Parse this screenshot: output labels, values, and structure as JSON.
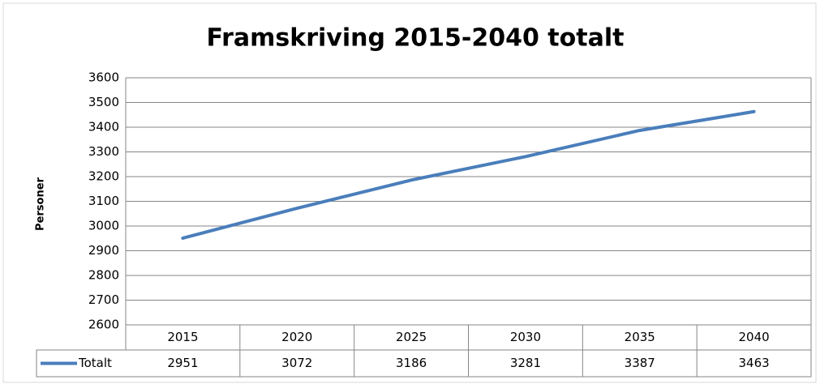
{
  "chart_data": {
    "type": "line",
    "title": "Framskriving 2015-2040 totalt",
    "y_label": "Personer",
    "categories": [
      "2015",
      "2020",
      "2025",
      "2030",
      "2035",
      "2040"
    ],
    "series": [
      {
        "name": "Totalt",
        "color": "#4a7ebb",
        "values": [
          2951,
          3072,
          3186,
          3281,
          3387,
          3463
        ]
      }
    ],
    "ylim": [
      2600,
      3600
    ],
    "yticks": [
      2600,
      2700,
      2800,
      2900,
      3000,
      3100,
      3200,
      3300,
      3400,
      3500,
      3600
    ],
    "grid": true,
    "data_table": true
  }
}
